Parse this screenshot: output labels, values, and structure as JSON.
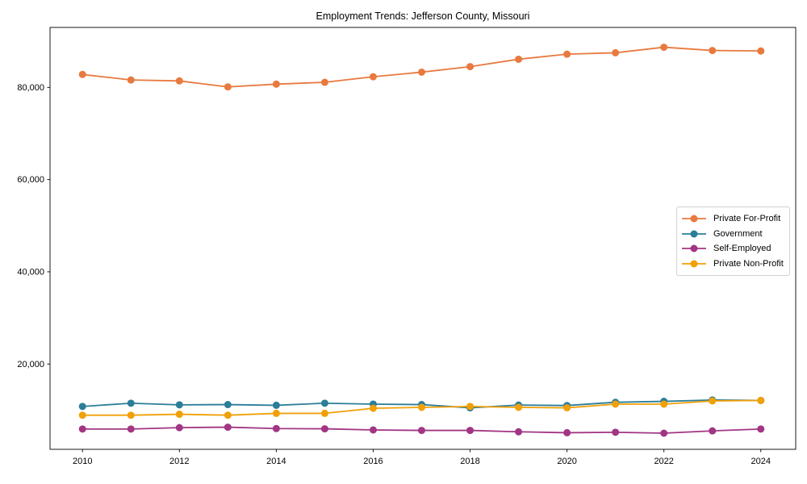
{
  "chart_data": {
    "type": "line",
    "title": "Employment Trends: Jefferson County, Missouri",
    "x": [
      2010,
      2011,
      2012,
      2013,
      2014,
      2015,
      2016,
      2017,
      2018,
      2019,
      2020,
      2021,
      2022,
      2023,
      2024
    ],
    "series": [
      {
        "name": "Private For-Profit",
        "color": "#e8793f",
        "values": [
          82800,
          81600,
          81400,
          80100,
          80700,
          81100,
          82300,
          83300,
          84500,
          86100,
          87200,
          87500,
          88700,
          88000,
          87900
        ]
      },
      {
        "name": "Government",
        "color": "#2b7d99",
        "values": [
          10800,
          11500,
          11150,
          11200,
          11050,
          11500,
          11300,
          11200,
          10500,
          11100,
          11000,
          11700,
          11900,
          12200,
          12100
        ]
      },
      {
        "name": "Self-Employed",
        "color": "#a23584",
        "values": [
          5900,
          5900,
          6200,
          6300,
          6000,
          5950,
          5700,
          5600,
          5600,
          5300,
          5100,
          5200,
          5000,
          5500,
          5900
        ]
      },
      {
        "name": "Private Non-Profit",
        "color": "#f0a008",
        "values": [
          8900,
          8900,
          9100,
          8900,
          9300,
          9300,
          10400,
          10600,
          10800,
          10600,
          10500,
          11300,
          11300,
          12000,
          12100
        ]
      }
    ],
    "xticks": {
      "values": [
        2010,
        2012,
        2014,
        2016,
        2018,
        2020,
        2022,
        2024
      ],
      "labels": [
        "2010",
        "2012",
        "2014",
        "2016",
        "2018",
        "2020",
        "2022",
        "2024"
      ]
    },
    "yticks": {
      "values": [
        20000,
        40000,
        60000,
        80000
      ],
      "labels": [
        "20,000",
        "40,000",
        "60,000",
        "80,000"
      ]
    },
    "xlim": [
      2009.33,
      2024.72
    ],
    "ylim": [
      1500,
      93000
    ],
    "grid": false,
    "legend_position": "center-right",
    "axis_color": "#000000",
    "background_color": "#ffffff"
  }
}
